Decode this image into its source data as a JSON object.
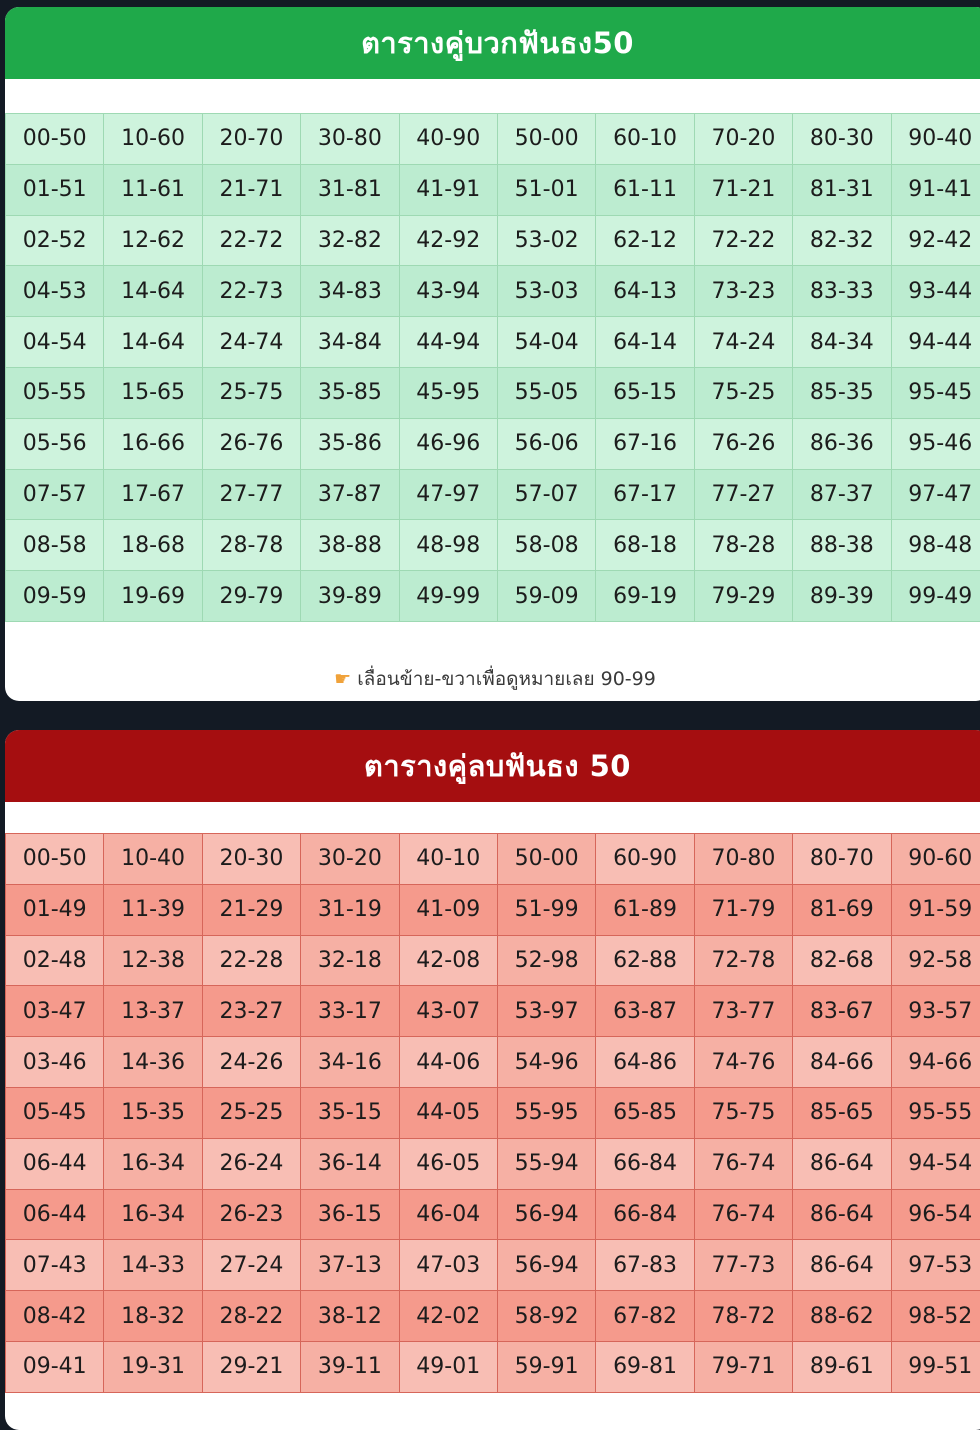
{
  "plus_table": {
    "title": "ตารางคู่บวกฟันธง50",
    "rows": [
      [
        "00-50",
        "10-60",
        "20-70",
        "30-80",
        "40-90",
        "50-00",
        "60-10",
        "70-20",
        "80-30",
        "90-40"
      ],
      [
        "01-51",
        "11-61",
        "21-71",
        "31-81",
        "41-91",
        "51-01",
        "61-11",
        "71-21",
        "81-31",
        "91-41"
      ],
      [
        "02-52",
        "12-62",
        "22-72",
        "32-82",
        "42-92",
        "53-02",
        "62-12",
        "72-22",
        "82-32",
        "92-42"
      ],
      [
        "04-53",
        "14-64",
        "22-73",
        "34-83",
        "43-94",
        "53-03",
        "64-13",
        "73-23",
        "83-33",
        "93-44"
      ],
      [
        "04-54",
        "14-64",
        "24-74",
        "34-84",
        "44-94",
        "54-04",
        "64-14",
        "74-24",
        "84-34",
        "94-44"
      ],
      [
        "05-55",
        "15-65",
        "25-75",
        "35-85",
        "45-95",
        "55-05",
        "65-15",
        "75-25",
        "85-35",
        "95-45"
      ],
      [
        "05-56",
        "16-66",
        "26-76",
        "35-86",
        "46-96",
        "56-06",
        "67-16",
        "76-26",
        "86-36",
        "95-46"
      ],
      [
        "07-57",
        "17-67",
        "27-77",
        "37-87",
        "47-97",
        "57-07",
        "67-17",
        "77-27",
        "87-37",
        "97-47"
      ],
      [
        "08-58",
        "18-68",
        "28-78",
        "38-88",
        "48-98",
        "58-08",
        "68-18",
        "78-28",
        "88-38",
        "98-48"
      ],
      [
        "09-59",
        "19-69",
        "29-79",
        "39-89",
        "49-99",
        "59-09",
        "69-19",
        "79-29",
        "89-39",
        "99-49"
      ]
    ],
    "scroll_hint": "เลื่อนข้าย-ขวาเพื่อดูหมายเลย 90-99",
    "hint_icon": "pointing-hand-icon"
  },
  "minus_table": {
    "title": "ตารางคู่ลบฟันธง 50",
    "rows": [
      [
        "00-50",
        "10-40",
        "20-30",
        "30-20",
        "40-10",
        "50-00",
        "60-90",
        "70-80",
        "80-70",
        "90-60"
      ],
      [
        "01-49",
        "11-39",
        "21-29",
        "31-19",
        "41-09",
        "51-99",
        "61-89",
        "71-79",
        "81-69",
        "91-59"
      ],
      [
        "02-48",
        "12-38",
        "22-28",
        "32-18",
        "42-08",
        "52-98",
        "62-88",
        "72-78",
        "82-68",
        "92-58"
      ],
      [
        "03-47",
        "13-37",
        "23-27",
        "33-17",
        "43-07",
        "53-97",
        "63-87",
        "73-77",
        "83-67",
        "93-57"
      ],
      [
        "03-46",
        "14-36",
        "24-26",
        "34-16",
        "44-06",
        "54-96",
        "64-86",
        "74-76",
        "84-66",
        "94-66"
      ],
      [
        "05-45",
        "15-35",
        "25-25",
        "35-15",
        "44-05",
        "55-95",
        "65-85",
        "75-75",
        "85-65",
        "95-55"
      ],
      [
        "06-44",
        "16-34",
        "26-24",
        "36-14",
        "46-05",
        "55-94",
        "66-84",
        "76-74",
        "86-64",
        "94-54"
      ],
      [
        "06-44",
        "16-34",
        "26-23",
        "36-15",
        "46-04",
        "56-94",
        "66-84",
        "76-74",
        "86-64",
        "96-54"
      ],
      [
        "07-43",
        "14-33",
        "27-24",
        "37-13",
        "47-03",
        "56-94",
        "67-83",
        "77-73",
        "86-64",
        "97-53"
      ],
      [
        "08-42",
        "18-32",
        "28-22",
        "38-12",
        "42-02",
        "58-92",
        "67-82",
        "78-72",
        "88-62",
        "98-52"
      ],
      [
        "09-41",
        "19-31",
        "29-21",
        "39-11",
        "49-01",
        "59-91",
        "69-81",
        "79-71",
        "89-61",
        "99-51"
      ]
    ]
  },
  "colors": {
    "green_header": "#1fa94a",
    "red_header": "#a50e10",
    "green_cell": "#cef3dd",
    "red_cell": "#f8beb4"
  }
}
